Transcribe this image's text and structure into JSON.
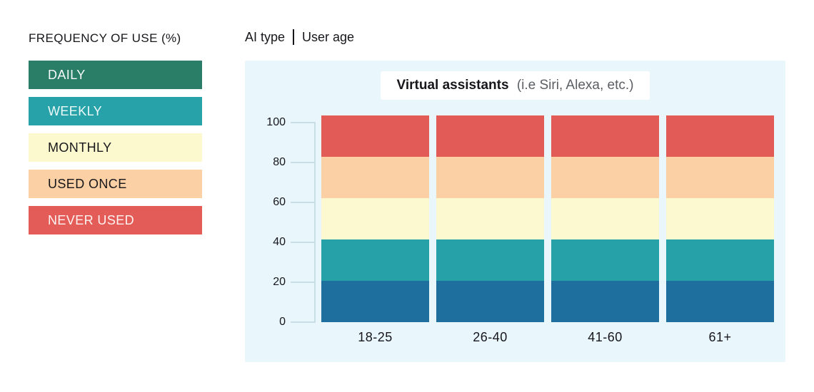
{
  "page": {
    "background": "#ffffff"
  },
  "legend": {
    "title": "FREQUENCY OF USE (%)",
    "items": [
      {
        "label": "DAILY",
        "color": "#2a7d66",
        "text_color": "#f3faf7"
      },
      {
        "label": "WEEKLY",
        "color": "#27a2a9",
        "text_color": "#ecf9f9"
      },
      {
        "label": "MONTHLY",
        "color": "#fbf9cd",
        "text_color": "#17171b"
      },
      {
        "label": "USED ONCE",
        "color": "#fbd0a5",
        "text_color": "#17171b"
      },
      {
        "label": "NEVER USED",
        "color": "#e45c57",
        "text_color": "#fdf3f1"
      }
    ]
  },
  "header": {
    "ai_type_label": "AI type",
    "user_age_label": "User age"
  },
  "chart": {
    "panel_background": "#e9f6fc",
    "title": "Virtual assistants",
    "title_note": "(i.e Siri, Alexa, etc.)"
  },
  "chart_data": {
    "type": "bar",
    "stacked": true,
    "title": "Virtual assistants (i.e Siri, Alexa, etc.)",
    "legend_title": "FREQUENCY OF USE (%)",
    "legend_position": "left",
    "categories": [
      "18-25",
      "26-40",
      "41-60",
      "61+"
    ],
    "series": [
      {
        "name": "DAILY",
        "color": "#1e6f9e",
        "values": [
          20.7,
          20.7,
          20.7,
          20.7
        ]
      },
      {
        "name": "WEEKLY",
        "color": "#26a1a8",
        "values": [
          20.7,
          20.7,
          20.7,
          20.7
        ]
      },
      {
        "name": "MONTHLY",
        "color": "#fcf9d0",
        "values": [
          20.7,
          20.7,
          20.7,
          20.7
        ]
      },
      {
        "name": "USED ONCE",
        "color": "#fbd0a5",
        "values": [
          20.7,
          20.7,
          20.7,
          20.7
        ]
      },
      {
        "name": "NEVER USED",
        "color": "#e25b56",
        "values": [
          20.7,
          20.7,
          20.7,
          20.7
        ]
      }
    ],
    "ylim": [
      0,
      100
    ],
    "yticks": [
      0,
      20,
      40,
      60,
      80,
      100
    ],
    "xlabel": "",
    "ylabel": "",
    "grid": false
  }
}
